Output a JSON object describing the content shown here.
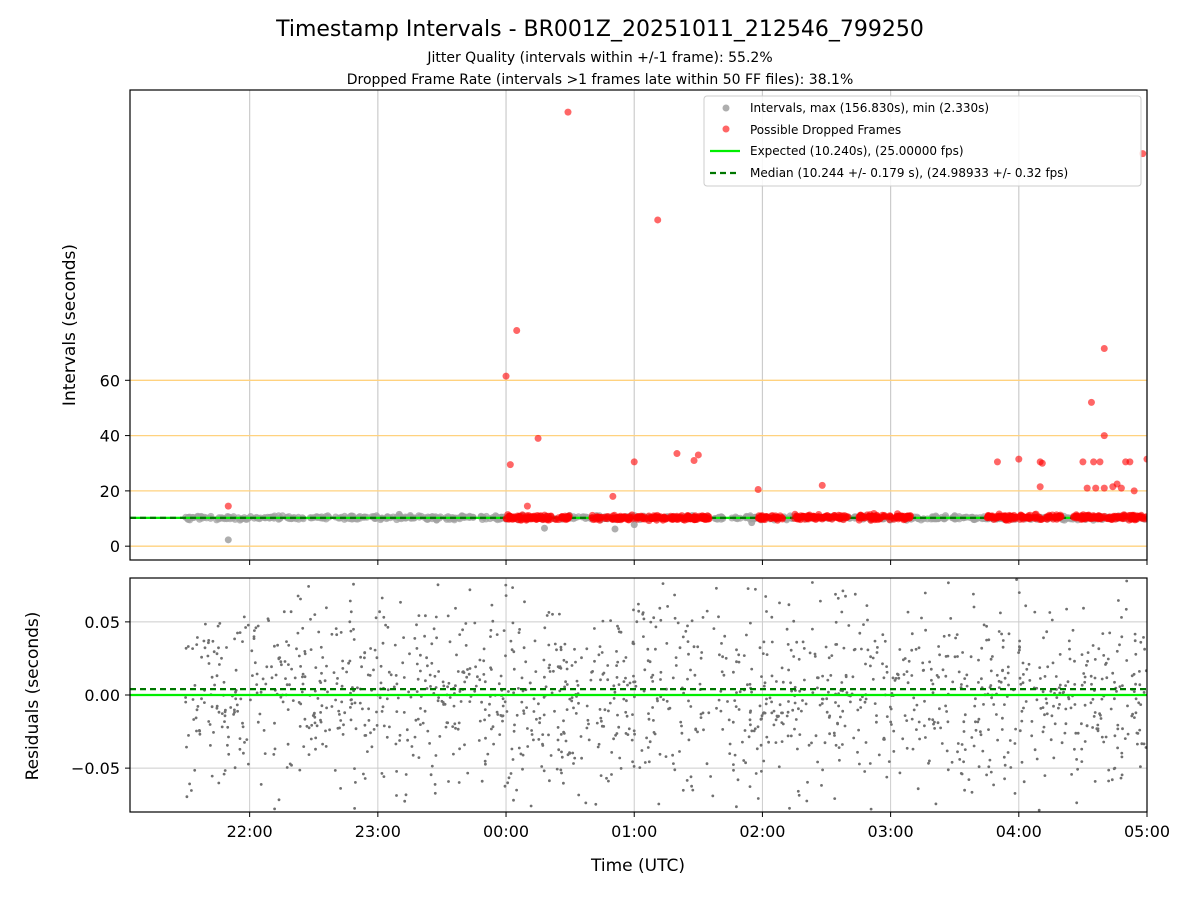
{
  "title": "Timestamp Intervals - BR001Z_20251011_212546_799250",
  "subtitle_1": "Jitter Quality (intervals within +/-1 frame): 55.2%",
  "subtitle_2": "Dropped Frame Rate (intervals >1 frames late within 50 FF files): 38.1%",
  "xlabel": "Time (UTC)",
  "top_ylabel": "Intervals (seconds)",
  "bottom_ylabel": "Residuals (seconds)",
  "colors": {
    "intervals": "#a0a0a0",
    "dropped": "#ff0000",
    "expected": "#00ee00",
    "median": "#007700",
    "reference_lines": "#ffd27f",
    "residuals": "#707070",
    "grid": "#cccccc"
  },
  "chart_data": [
    {
      "type": "scatter",
      "panel": "intervals",
      "xlim": [
        "21:04",
        "05:00"
      ],
      "ylim": [
        -5,
        165
      ],
      "x_ticks": [
        "22:00",
        "23:00",
        "00:00",
        "01:00",
        "02:00",
        "03:00",
        "04:00",
        "05:00"
      ],
      "y_ticks": [
        0,
        20,
        40,
        60
      ],
      "horizontal_reference_lines": [
        0,
        20,
        40,
        60
      ],
      "grid": "vertical",
      "legend_position": "upper right",
      "legend": [
        "Intervals, max (156.830s), min (2.330s)",
        "Possible Dropped Frames",
        "Expected (10.240s), (25.00000 fps)",
        "Median (10.244 +/- 0.179 s), (24.98933 +/- 0.32 fps)"
      ],
      "series": [
        {
          "name": "Intervals, max (156.830s), min (2.330s)",
          "marker": "circle",
          "x_range": [
            "21:30",
            "05:00"
          ],
          "y_typical": 10.24,
          "points": [
            {
              "x": "21:50",
              "y": 2.3
            },
            {
              "x": "23:10",
              "y": 11.5
            },
            {
              "x": "00:18",
              "y": 6.5
            },
            {
              "x": "00:51",
              "y": 6.2
            },
            {
              "x": "01:00",
              "y": 7.8
            },
            {
              "x": "01:55",
              "y": 8.5
            },
            {
              "x": "03:30",
              "y": 11.0
            }
          ]
        },
        {
          "name": "Possible Dropped Frames",
          "marker": "circle",
          "points": [
            {
              "x": "21:50",
              "y": 14.5
            },
            {
              "x": "00:00",
              "y": 61.5
            },
            {
              "x": "00:02",
              "y": 29.5
            },
            {
              "x": "00:05",
              "y": 78.0
            },
            {
              "x": "00:15",
              "y": 39.0
            },
            {
              "x": "00:10",
              "y": 14.5
            },
            {
              "x": "00:29",
              "y": 157.0
            },
            {
              "x": "00:50",
              "y": 18.0
            },
            {
              "x": "01:00",
              "y": 30.5
            },
            {
              "x": "01:11",
              "y": 118.0
            },
            {
              "x": "01:20",
              "y": 33.5
            },
            {
              "x": "01:28",
              "y": 31.0
            },
            {
              "x": "01:30",
              "y": 33.0
            },
            {
              "x": "01:58",
              "y": 20.5
            },
            {
              "x": "02:28",
              "y": 22.0
            },
            {
              "x": "03:50",
              "y": 30.5
            },
            {
              "x": "04:00",
              "y": 31.5
            },
            {
              "x": "04:10",
              "y": 30.5
            },
            {
              "x": "04:10",
              "y": 21.5
            },
            {
              "x": "04:11",
              "y": 30.0
            },
            {
              "x": "04:34",
              "y": 52.0
            },
            {
              "x": "04:40",
              "y": 71.5
            },
            {
              "x": "04:40",
              "y": 40.0
            },
            {
              "x": "04:30",
              "y": 30.5
            },
            {
              "x": "04:35",
              "y": 30.5
            },
            {
              "x": "04:38",
              "y": 30.5
            },
            {
              "x": "04:50",
              "y": 30.5
            },
            {
              "x": "04:52",
              "y": 30.5
            },
            {
              "x": "05:00",
              "y": 31.5
            },
            {
              "x": "04:58",
              "y": 142.0
            },
            {
              "x": "04:32",
              "y": 21.0
            },
            {
              "x": "04:36",
              "y": 21.0
            },
            {
              "x": "04:40",
              "y": 21.0
            },
            {
              "x": "04:44",
              "y": 21.5
            },
            {
              "x": "04:48",
              "y": 21.0
            },
            {
              "x": "04:54",
              "y": 20.0
            },
            {
              "x": "04:46",
              "y": 22.5
            }
          ],
          "dense_bands": [
            {
              "x_from": "00:00",
              "x_to": "00:30",
              "y": 10.3
            },
            {
              "x_from": "00:40",
              "x_to": "01:35",
              "y": 10.3
            },
            {
              "x_from": "01:58",
              "x_to": "02:10",
              "y": 10.3
            },
            {
              "x_from": "02:15",
              "x_to": "02:40",
              "y": 10.5
            },
            {
              "x_from": "02:45",
              "x_to": "03:10",
              "y": 10.5
            },
            {
              "x_from": "03:45",
              "x_to": "04:20",
              "y": 10.5
            },
            {
              "x_from": "04:25",
              "x_to": "05:00",
              "y": 10.5
            }
          ]
        },
        {
          "name": "Expected (10.240s), (25.00000 fps)",
          "line": "solid",
          "y": 10.24
        },
        {
          "name": "Median (10.244 +/- 0.179 s), (24.98933 +/- 0.32 fps)",
          "line": "dashed",
          "y": 10.244
        }
      ]
    },
    {
      "type": "scatter",
      "panel": "residuals",
      "xlim": [
        "21:04",
        "05:00"
      ],
      "ylim": [
        -0.08,
        0.08
      ],
      "x_ticks": [
        "22:00",
        "23:00",
        "00:00",
        "01:00",
        "02:00",
        "03:00",
        "04:00",
        "05:00"
      ],
      "y_ticks": [
        "0.05",
        "0.00",
        "−0.05"
      ],
      "grid": "both",
      "series": [
        {
          "name": "",
          "marker": "dot",
          "x_range": [
            "21:30",
            "05:00"
          ],
          "y_range": [
            -0.08,
            0.08
          ],
          "distribution": "scattered, denser near 0"
        },
        {
          "name": "",
          "line": "solid",
          "y": 0.0
        },
        {
          "name": "",
          "line": "dashed",
          "y": 0.004
        }
      ]
    }
  ]
}
